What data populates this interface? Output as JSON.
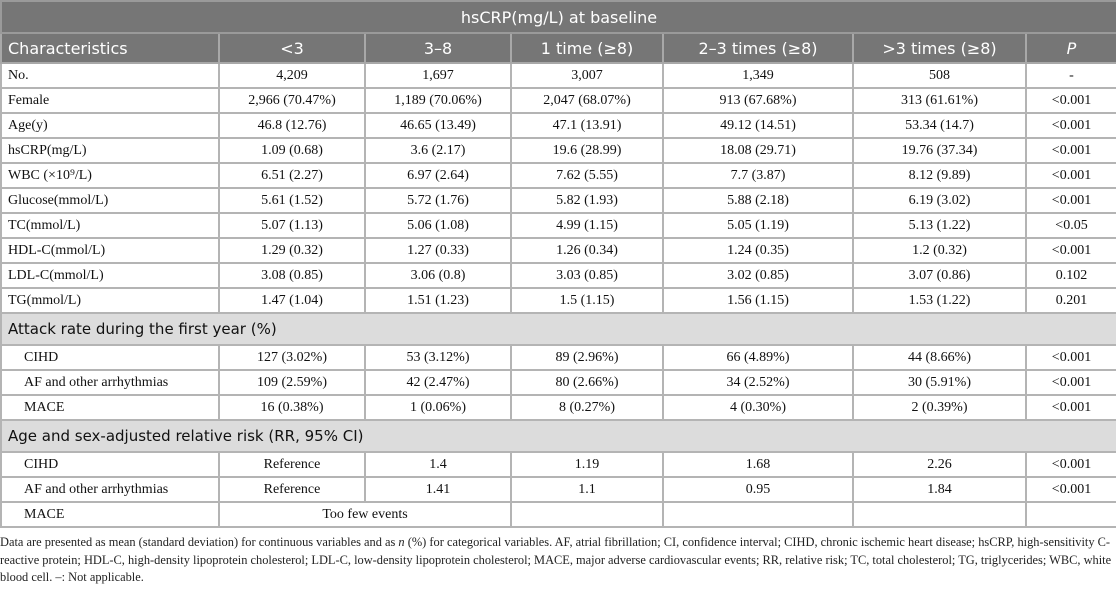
{
  "table": {
    "title": "hsCRP(mg/L) at baseline",
    "headers": [
      "Characteristics",
      "<3",
      "3–8",
      "1 time (≥8)",
      "2–3 times (≥8)",
      ">3 times (≥8)",
      "P"
    ],
    "rows": [
      [
        "No.",
        "4,209",
        "1,697",
        "3,007",
        "1,349",
        "508",
        "-"
      ],
      [
        "Female",
        "2,966 (70.47%)",
        "1,189 (70.06%)",
        "2,047 (68.07%)",
        "913 (67.68%)",
        "313 (61.61%)",
        "<0.001"
      ],
      [
        "Age(y)",
        "46.8 (12.76)",
        "46.65 (13.49)",
        "47.1 (13.91)",
        "49.12 (14.51)",
        "53.34 (14.7)",
        "<0.001"
      ],
      [
        "hsCRP(mg/L)",
        "1.09 (0.68)",
        "3.6 (2.17)",
        "19.6 (28.99)",
        "18.08 (29.71)",
        "19.76 (37.34)",
        "<0.001"
      ],
      [
        "WBC (×10⁹/L)",
        "6.51 (2.27)",
        "6.97 (2.64)",
        "7.62 (5.55)",
        "7.7 (3.87)",
        "8.12 (9.89)",
        "<0.001"
      ],
      [
        "Glucose(mmol/L)",
        "5.61 (1.52)",
        "5.72 (1.76)",
        "5.82 (1.93)",
        "5.88 (2.18)",
        "6.19 (3.02)",
        "<0.001"
      ],
      [
        "TC(mmol/L)",
        "5.07 (1.13)",
        "5.06 (1.08)",
        "4.99 (1.15)",
        "5.05 (1.19)",
        "5.13 (1.22)",
        "<0.05"
      ],
      [
        "HDL-C(mmol/L)",
        "1.29 (0.32)",
        "1.27 (0.33)",
        "1.26 (0.34)",
        "1.24 (0.35)",
        "1.2 (0.32)",
        "<0.001"
      ],
      [
        "LDL-C(mmol/L)",
        "3.08 (0.85)",
        "3.06 (0.8)",
        "3.03 (0.85)",
        "3.02 (0.85)",
        "3.07 (0.86)",
        "0.102"
      ],
      [
        "TG(mmol/L)",
        "1.47 (1.04)",
        "1.51 (1.23)",
        "1.5 (1.15)",
        "1.56 (1.15)",
        "1.53 (1.22)",
        "0.201"
      ]
    ],
    "section1": {
      "title": "Attack rate during the first year (%)",
      "rows": [
        [
          "CIHD",
          "127 (3.02%)",
          "53 (3.12%)",
          "89 (2.96%)",
          "66 (4.89%)",
          "44 (8.66%)",
          "<0.001"
        ],
        [
          "AF and other arrhythmias",
          "109 (2.59%)",
          "42 (2.47%)",
          "80 (2.66%)",
          "34 (2.52%)",
          "30 (5.91%)",
          "<0.001"
        ],
        [
          "MACE",
          "16 (0.38%)",
          "1 (0.06%)",
          "8 (0.27%)",
          "4 (0.30%)",
          "2 (0.39%)",
          "<0.001"
        ]
      ]
    },
    "section2": {
      "title": "Age and sex-adjusted relative risk (RR, 95% CI)",
      "rows": [
        [
          "CIHD",
          "Reference",
          "1.4",
          "1.19",
          "1.68",
          "2.26",
          "<0.001"
        ],
        [
          "AF and other arrhythmias",
          "Reference",
          "1.41",
          "1.1",
          "0.95",
          "1.84",
          "<0.001"
        ]
      ],
      "mace_label": "MACE",
      "mace_value": "Too few events"
    }
  },
  "footnote": {
    "part1": "Data are presented as mean (standard deviation) for continuous variables and as ",
    "n": "n",
    "part2": " (%) for categorical variables. AF, atrial fibrillation; CI, confidence interval; CIHD, chronic ischemic heart disease; hsCRP, high-sensitivity C-reactive protein; HDL-C, high-density lipoprotein cholesterol; LDL-C, low-density lipoprotein cholesterol; MACE, major adverse cardiovascular events; RR, relative risk; TC, total cholesterol; TG, triglycerides; WBC, white blood cell. –: Not applicable."
  }
}
